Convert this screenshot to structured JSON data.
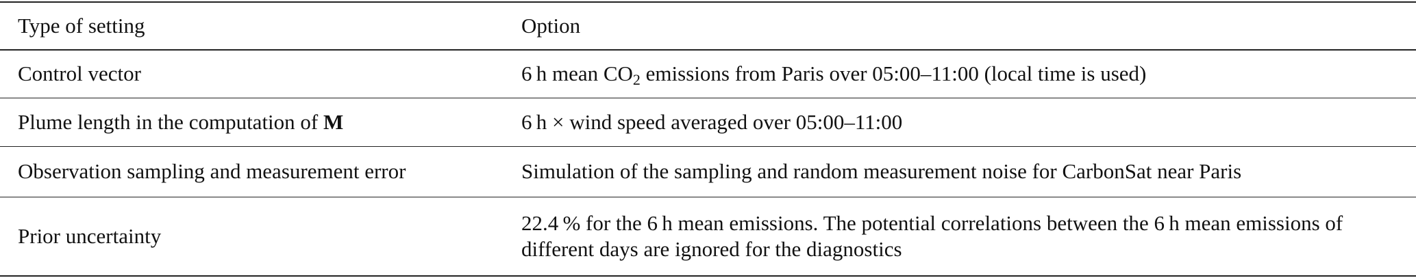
{
  "table": {
    "header": [
      "Type of setting",
      "Option"
    ],
    "rows": [
      [
        [
          "Control vector"
        ],
        [
          "6 h mean CO",
          "2",
          " emissions from Paris over 05:00–11:00 (local time is used)"
        ]
      ],
      [
        [
          "Plume length in the computation of ",
          "M"
        ],
        [
          "6 h × wind speed averaged over 05:00–11:00"
        ]
      ],
      [
        [
          "Observation sampling and measurement error"
        ],
        [
          "Simulation of the sampling and random measurement noise for CarbonSat near Paris"
        ]
      ],
      [
        [
          "Prior uncertainty"
        ],
        [
          "22.4 % for the 6 h mean emissions. The potential correlations between the 6 h mean emissions of different days are ignored for the diagnostics"
        ]
      ]
    ]
  }
}
